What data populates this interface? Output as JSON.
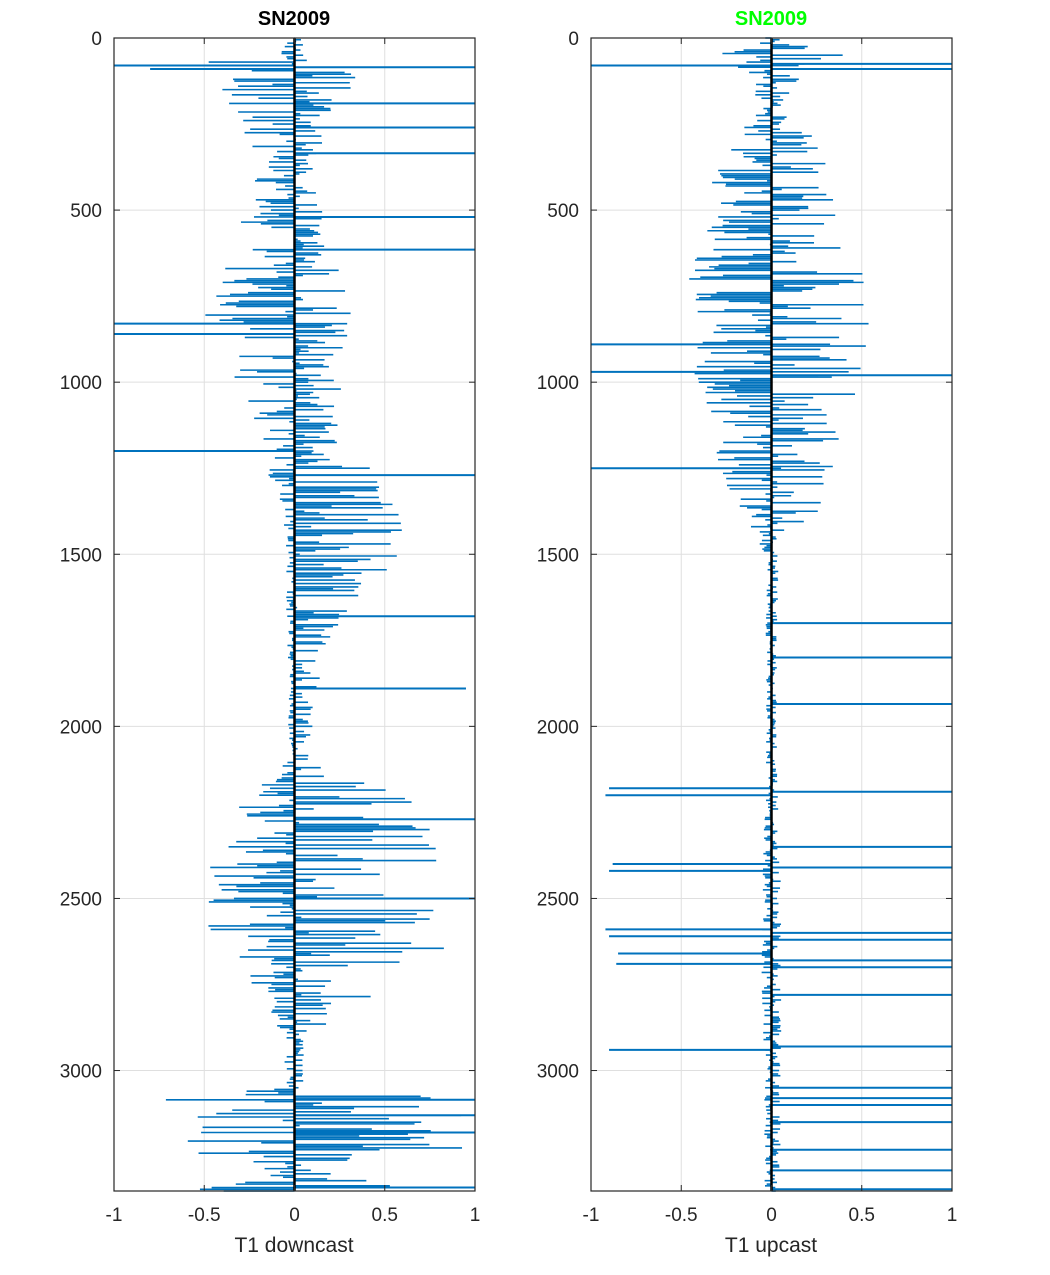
{
  "chart_data": [
    {
      "type": "bar",
      "orientation": "horizontal",
      "title": "SN2009",
      "title_color": "#000000",
      "xlabel": "T1 downcast",
      "ylabel": "",
      "xlim": [
        -1,
        1
      ],
      "ylim": [
        0,
        3350
      ],
      "y_reversed": true,
      "grid": true,
      "series_color": "#0072BD",
      "zero_line_color": "#000000",
      "xticks": [
        -1,
        -0.5,
        0,
        0.5,
        1
      ],
      "xtick_labels": [
        "-1",
        "-0.5",
        "0",
        "0.5",
        "1"
      ],
      "yticks": [
        0,
        500,
        1000,
        1500,
        2000,
        2500,
        3000
      ],
      "ytick_labels": [
        "0",
        "500",
        "1000",
        "1500",
        "2000",
        "2500",
        "3000"
      ],
      "y_step": 5,
      "envelope": [
        [
          0,
          0.06,
          0.05
        ],
        [
          60,
          0.08,
          0.07
        ],
        [
          80,
          1.0,
          1.0
        ],
        [
          100,
          0.45,
          0.45
        ],
        [
          200,
          0.4,
          0.22
        ],
        [
          350,
          0.2,
          0.14
        ],
        [
          500,
          0.28,
          0.16
        ],
        [
          600,
          0.35,
          0.2
        ],
        [
          700,
          0.45,
          0.3
        ],
        [
          800,
          0.5,
          0.35
        ],
        [
          900,
          0.42,
          0.32
        ],
        [
          1000,
          0.38,
          0.28
        ],
        [
          1100,
          0.3,
          0.22
        ],
        [
          1200,
          0.22,
          0.3
        ],
        [
          1300,
          0.12,
          0.55
        ],
        [
          1400,
          0.06,
          0.62
        ],
        [
          1500,
          0.05,
          0.6
        ],
        [
          1600,
          0.05,
          0.45
        ],
        [
          1750,
          0.04,
          0.2
        ],
        [
          1900,
          0.03,
          0.12
        ],
        [
          2100,
          0.04,
          0.08
        ],
        [
          2250,
          0.35,
          0.85
        ],
        [
          2400,
          0.5,
          0.95
        ],
        [
          2600,
          0.48,
          0.9
        ],
        [
          2700,
          0.35,
          0.75
        ],
        [
          2800,
          0.2,
          0.4
        ],
        [
          2900,
          0.06,
          0.06
        ],
        [
          3050,
          0.05,
          0.05
        ],
        [
          3080,
          0.8,
          1.0
        ],
        [
          3250,
          0.75,
          1.0
        ],
        [
          3270,
          0.06,
          0.05
        ],
        [
          3350,
          0.7,
          1.0
        ]
      ],
      "spikes": [
        [
          80,
          -1.0
        ],
        [
          85,
          1.0
        ],
        [
          90,
          -0.8
        ],
        [
          190,
          1.0
        ],
        [
          260,
          1.0
        ],
        [
          335,
          1.0
        ],
        [
          520,
          1.0
        ],
        [
          615,
          1.0
        ],
        [
          830,
          -1.0
        ],
        [
          860,
          -1.0
        ],
        [
          1200,
          -1.0
        ],
        [
          1270,
          1.0
        ],
        [
          1680,
          1.0
        ],
        [
          1890,
          0.95
        ],
        [
          2270,
          1.0
        ],
        [
          2500,
          1.0
        ],
        [
          3085,
          1.0
        ],
        [
          3130,
          1.0
        ],
        [
          3180,
          1.0
        ],
        [
          3340,
          1.0
        ]
      ]
    },
    {
      "type": "bar",
      "orientation": "horizontal",
      "title": "SN2009",
      "title_color": "#00FF00",
      "xlabel": "T1 upcast",
      "ylabel": "",
      "xlim": [
        -1,
        1
      ],
      "ylim": [
        0,
        3350
      ],
      "y_reversed": true,
      "grid": true,
      "series_color": "#0072BD",
      "zero_line_color": "#000000",
      "xticks": [
        -1,
        -0.5,
        0,
        0.5,
        1
      ],
      "xtick_labels": [
        "-1",
        "-0.5",
        "0",
        "0.5",
        "1"
      ],
      "yticks": [
        0,
        500,
        1000,
        1500,
        2000,
        2500,
        3000
      ],
      "ytick_labels": [
        "0",
        "500",
        "1000",
        "1500",
        "2000",
        "2500",
        "3000"
      ],
      "y_step": 5,
      "envelope": [
        [
          0,
          0.06,
          0.06
        ],
        [
          50,
          0.3,
          0.4
        ],
        [
          100,
          0.15,
          0.2
        ],
        [
          200,
          0.06,
          0.06
        ],
        [
          350,
          0.3,
          0.35
        ],
        [
          450,
          0.35,
          0.35
        ],
        [
          550,
          0.35,
          0.4
        ],
        [
          650,
          0.45,
          0.5
        ],
        [
          750,
          0.5,
          0.55
        ],
        [
          900,
          0.55,
          0.6
        ],
        [
          1000,
          0.45,
          0.5
        ],
        [
          1100,
          0.35,
          0.4
        ],
        [
          1250,
          0.3,
          0.35
        ],
        [
          1350,
          0.2,
          0.3
        ],
        [
          1500,
          0.04,
          0.04
        ],
        [
          1800,
          0.03,
          0.03
        ],
        [
          2100,
          0.03,
          0.03
        ],
        [
          2400,
          0.05,
          0.05
        ],
        [
          2700,
          0.06,
          0.06
        ],
        [
          3000,
          0.04,
          0.05
        ],
        [
          3350,
          0.04,
          0.05
        ]
      ],
      "spikes": [
        [
          75,
          1.0
        ],
        [
          80,
          -1.0
        ],
        [
          90,
          1.0
        ],
        [
          890,
          -1.0
        ],
        [
          970,
          -1.0
        ],
        [
          980,
          1.0
        ],
        [
          1250,
          -1.0
        ],
        [
          1700,
          1.0
        ],
        [
          1800,
          1.0
        ],
        [
          1935,
          1.0
        ],
        [
          2180,
          -0.9
        ],
        [
          2190,
          1.0
        ],
        [
          2200,
          -0.92
        ],
        [
          2350,
          1.0
        ],
        [
          2400,
          -0.88
        ],
        [
          2410,
          1.0
        ],
        [
          2420,
          -0.9
        ],
        [
          2590,
          -0.92
        ],
        [
          2600,
          1.0
        ],
        [
          2610,
          -0.9
        ],
        [
          2620,
          1.0
        ],
        [
          2660,
          -0.85
        ],
        [
          2680,
          1.0
        ],
        [
          2690,
          -0.86
        ],
        [
          2700,
          1.0
        ],
        [
          2780,
          1.0
        ],
        [
          2930,
          1.0
        ],
        [
          2940,
          -0.9
        ],
        [
          3050,
          1.0
        ],
        [
          3080,
          1.0
        ],
        [
          3100,
          1.0
        ],
        [
          3150,
          1.0
        ],
        [
          3230,
          1.0
        ],
        [
          3290,
          1.0
        ],
        [
          3345,
          1.0
        ]
      ]
    }
  ]
}
